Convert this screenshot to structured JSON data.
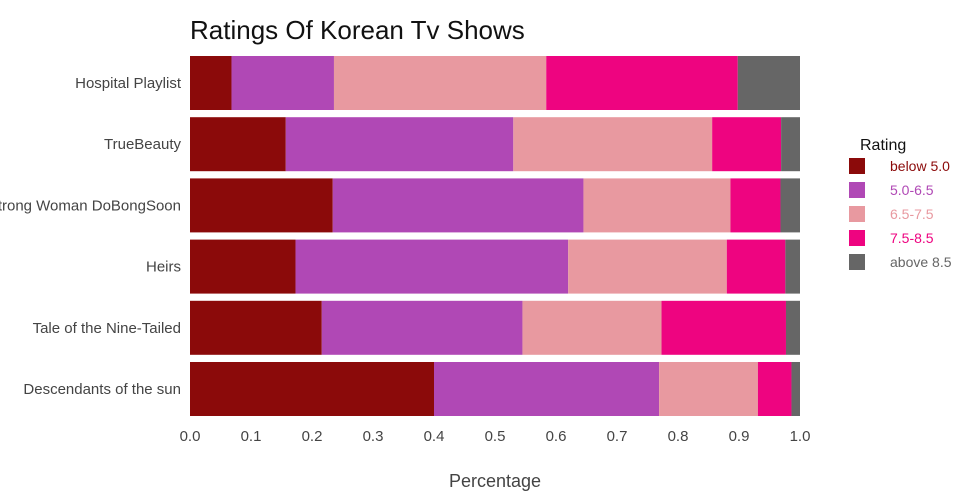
{
  "chart_data": {
    "type": "bar",
    "orientation": "horizontal",
    "stacked": true,
    "title": "Ratings Of Korean Tv Shows",
    "xlabel": "Percentage",
    "ylabel": "",
    "xlim": [
      0,
      1
    ],
    "xticks": [
      "0.0",
      "0.1",
      "0.2",
      "0.3",
      "0.4",
      "0.5",
      "0.6",
      "0.7",
      "0.8",
      "0.9",
      "1.0"
    ],
    "grid": false,
    "legend_position": "right",
    "legend_title": "Rating",
    "categories": [
      "Hospital Playlist",
      "TrueBeauty",
      "Strong Woman DoBongSoon",
      "Heirs",
      "Tale of the Nine-Tailed",
      "Descendants of the sun"
    ],
    "series": [
      {
        "name": "below 5.0",
        "color": "#8b0a0a",
        "values": [
          0.068,
          0.157,
          0.234,
          0.173,
          0.216,
          0.4
        ]
      },
      {
        "name": "5.0-6.5",
        "color": "#b048b5",
        "values": [
          0.168,
          0.373,
          0.411,
          0.447,
          0.329,
          0.369
        ]
      },
      {
        "name": "6.5-7.5",
        "color": "#e899a0",
        "values": [
          0.348,
          0.326,
          0.241,
          0.26,
          0.228,
          0.162
        ]
      },
      {
        "name": "7.5-8.5",
        "color": "#ee0480",
        "values": [
          0.314,
          0.113,
          0.082,
          0.096,
          0.204,
          0.055
        ]
      },
      {
        "name": "above 8.5",
        "color": "#666666",
        "values": [
          0.102,
          0.031,
          0.032,
          0.024,
          0.023,
          0.014
        ]
      }
    ]
  }
}
